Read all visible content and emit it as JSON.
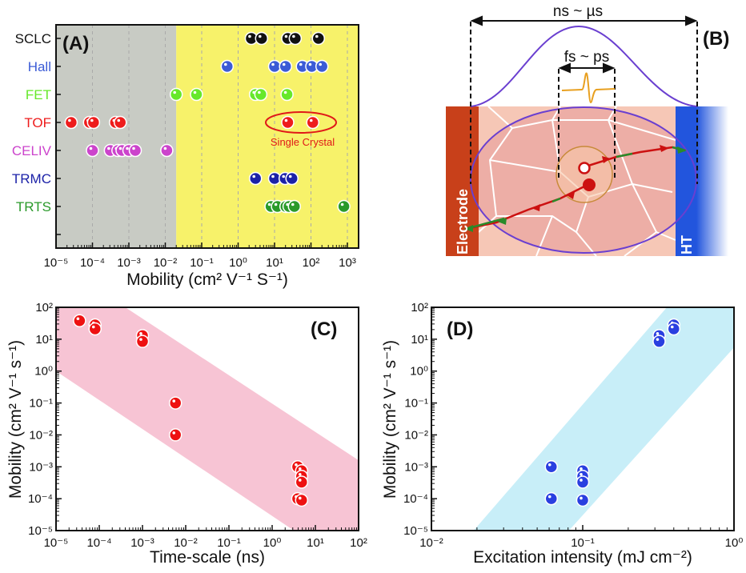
{
  "chart_data": [
    {
      "panel": "(A)",
      "type": "scatter",
      "xlabel": "Mobility (cm² V⁻¹ S⁻¹)",
      "xscale": "log",
      "xlim": [
        1e-05,
        2000
      ],
      "xticks": [
        1e-05,
        0.0001,
        0.001,
        0.01,
        0.1,
        1,
        10,
        100,
        1000
      ],
      "xtick_labels": [
        "10⁻⁵",
        "10⁻⁴",
        "10⁻³",
        "10⁻²",
        "10⁻¹",
        "10⁰",
        "10¹",
        "10²",
        "10³"
      ],
      "grid": "vertical dashed at decades",
      "shaded_regions": [
        {
          "from": 1e-05,
          "to": 0.02,
          "color": "#c8cbc4"
        },
        {
          "from": 0.02,
          "to": 2000,
          "color": "#f7f26a"
        }
      ],
      "categories": [
        "SCLC",
        "Hall",
        "FET",
        "TOF",
        "CELIV",
        "TRMC",
        "TRTS"
      ],
      "series": [
        {
          "name": "SCLC",
          "color": "#111111",
          "values": [
            2.3,
            4.4,
            23,
            37,
            160
          ]
        },
        {
          "name": "Hall",
          "color": "#3b5bd6",
          "values": [
            0.5,
            10,
            20,
            58,
            105,
            200
          ]
        },
        {
          "name": "FET",
          "color": "#66e82a",
          "values": [
            0.02,
            0.072,
            3,
            4.2,
            22
          ]
        },
        {
          "name": "TOF",
          "color": "#ee1c1c",
          "values": [
            2.6e-05,
            8.3e-05,
            0.000107,
            0.00043,
            0.00058,
            23,
            112
          ]
        },
        {
          "name": "CELIV",
          "color": "#cc44cc",
          "values": [
            0.0001,
            0.00031,
            0.0005,
            0.00065,
            0.001,
            0.0015,
            0.011
          ]
        },
        {
          "name": "TRMC",
          "color": "#1c22a8",
          "values": [
            3,
            10,
            19.5,
            30
          ]
        },
        {
          "name": "TRTS",
          "color": "#2a9a2a",
          "values": [
            8,
            12,
            20.5,
            25,
            35,
            800
          ]
        }
      ],
      "annotation": {
        "text": "Single Crystal",
        "color": "#e01818",
        "encircles": {
          "category": "TOF",
          "values": [
            23,
            112
          ]
        }
      }
    },
    {
      "panel": "(C)",
      "type": "scatter",
      "xlabel": "Time-scale (ns)",
      "ylabel": "Mobility (cm² V⁻¹ s⁻¹)",
      "xscale": "log",
      "yscale": "log",
      "xlim": [
        1e-05,
        100
      ],
      "ylim": [
        1e-05,
        100
      ],
      "xticks": [
        1e-05,
        0.0001,
        0.001,
        0.01,
        0.1,
        1,
        10,
        100
      ],
      "xtick_labels": [
        "10⁻⁵",
        "10⁻⁴",
        "10⁻³",
        "10⁻²",
        "10⁻¹",
        "10⁰",
        "10¹",
        "10²"
      ],
      "yticks": [
        1e-05,
        0.0001,
        0.001,
        0.01,
        0.1,
        1,
        10,
        100
      ],
      "ytick_labels": [
        "10⁻⁵",
        "10⁻⁴",
        "10⁻³",
        "10⁻²",
        "10⁻¹",
        "10⁰",
        "10¹",
        "10²"
      ],
      "point_color": "#ee1111",
      "band_color": "#f7c4d4",
      "band_polygon": [
        [
          1e-05,
          100
        ],
        [
          0.0004,
          100
        ],
        [
          100,
          0.0016
        ],
        [
          100,
          1e-05
        ],
        [
          3.2,
          1e-05
        ],
        [
          1e-05,
          1
        ]
      ],
      "points": [
        [
          3.5e-05,
          38
        ],
        [
          8e-05,
          28
        ],
        [
          8e-05,
          21
        ],
        [
          0.001,
          13
        ],
        [
          0.001,
          8.5
        ],
        [
          0.0058,
          0.1
        ],
        [
          0.0058,
          0.01
        ],
        [
          3.9,
          0.001
        ],
        [
          4.8,
          0.00075
        ],
        [
          4.8,
          0.0005
        ],
        [
          4.8,
          0.00033
        ],
        [
          3.9,
          0.0001
        ],
        [
          4.8,
          9e-05
        ]
      ]
    },
    {
      "panel": "(D)",
      "type": "scatter",
      "xlabel": "Excitation intensity (mJ cm⁻²)",
      "ylabel": "Mobility (cm² V⁻¹ s⁻¹)",
      "xscale": "log",
      "yscale": "log",
      "xlim": [
        0.01,
        1
      ],
      "ylim": [
        1e-05,
        100
      ],
      "xticks": [
        0.01,
        0.1,
        1
      ],
      "xtick_labels": [
        "10⁻²",
        "10⁻¹",
        "10⁰"
      ],
      "yticks": [
        1e-05,
        0.0001,
        0.001,
        0.01,
        0.1,
        1,
        10,
        100
      ],
      "ytick_labels": [
        "10⁻⁵",
        "10⁻⁴",
        "10⁻³",
        "10⁻²",
        "10⁻¹",
        "10⁰",
        "10¹",
        "10²"
      ],
      "point_color": "#2a3fe0",
      "band_color": "#c8eef8",
      "band_polygon": [
        [
          0.019,
          1e-05
        ],
        [
          0.36,
          100
        ],
        [
          1,
          100
        ],
        [
          1,
          5.5
        ],
        [
          0.081,
          1e-05
        ]
      ],
      "points": [
        [
          0.062,
          0.001
        ],
        [
          0.062,
          0.0001
        ],
        [
          0.1,
          0.00075
        ],
        [
          0.1,
          0.0005
        ],
        [
          0.1,
          0.00033
        ],
        [
          0.1,
          9e-05
        ],
        [
          0.32,
          13
        ],
        [
          0.32,
          8.5
        ],
        [
          0.4,
          28
        ],
        [
          0.4,
          21
        ]
      ]
    }
  ],
  "diagram_b": {
    "panel": "(B)",
    "long_timescale": "ns ~ µs",
    "short_timescale": "fs ~ ps",
    "electrode_label": "Electrode",
    "ht_label": "HT",
    "colors": {
      "electrode": "#c8401a",
      "ht": "#2255dd",
      "film": "#efb5a8",
      "envelope": "#6a3fd0",
      "pulse": "#e8a020"
    }
  }
}
